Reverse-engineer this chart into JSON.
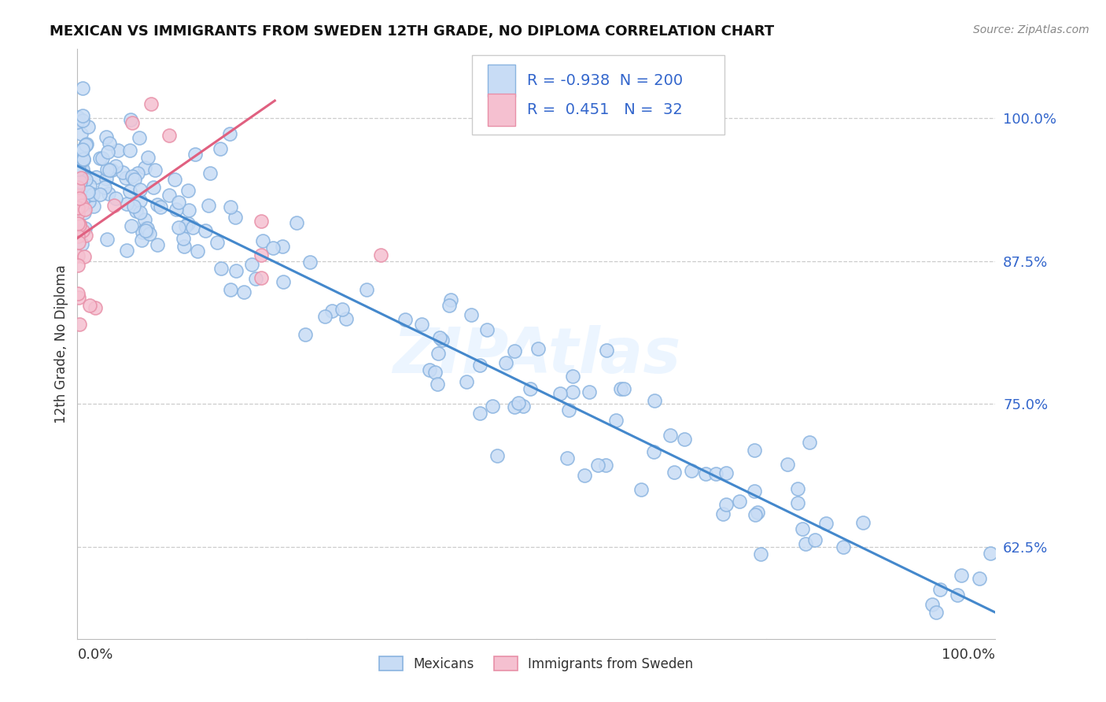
{
  "title": "MEXICAN VS IMMIGRANTS FROM SWEDEN 12TH GRADE, NO DIPLOMA CORRELATION CHART",
  "source": "Source: ZipAtlas.com",
  "ylabel": "12th Grade, No Diploma",
  "ytick_labels": [
    "100.0%",
    "87.5%",
    "75.0%",
    "62.5%"
  ],
  "ytick_values": [
    1.0,
    0.875,
    0.75,
    0.625
  ],
  "legend_blue_r": "-0.938",
  "legend_blue_n": "200",
  "legend_pink_r": "0.451",
  "legend_pink_n": "32",
  "blue_face_color": "#c8dcf5",
  "blue_edge_color": "#8ab4e0",
  "pink_face_color": "#f5c0d0",
  "pink_edge_color": "#e890a8",
  "blue_line_color": "#4488cc",
  "pink_line_color": "#e06080",
  "legend_text_color": "#3366cc",
  "watermark_color": "#ddeeff",
  "xmin": 0.0,
  "xmax": 1.0,
  "ymin": 0.545,
  "ymax": 1.06,
  "blue_trend_x0": 0.0,
  "blue_trend_x1": 1.0,
  "blue_trend_y0": 0.958,
  "blue_trend_y1": 0.568,
  "pink_trend_x0": 0.0,
  "pink_trend_x1": 0.215,
  "pink_trend_y0": 0.895,
  "pink_trend_y1": 1.015,
  "title_fontsize": 13,
  "source_fontsize": 10,
  "tick_fontsize": 13,
  "legend_fontsize": 14,
  "ylabel_fontsize": 12
}
